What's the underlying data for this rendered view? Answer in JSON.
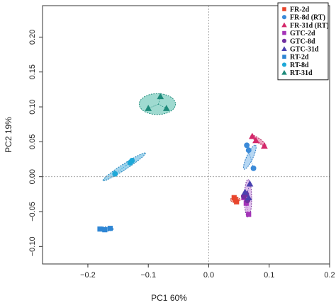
{
  "chart_data": {
    "type": "scatter",
    "xlabel": "PC1 60%",
    "ylabel": "PC2 19%",
    "xlim": [
      -0.275,
      0.2
    ],
    "ylim": [
      -0.125,
      0.245
    ],
    "x_ticks": [
      -0.2,
      -0.1,
      0.0,
      0.1,
      0.2
    ],
    "x_tick_labels": [
      "−0.2",
      "−0.1",
      "0.0",
      "0.1",
      "0.2"
    ],
    "y_ticks": [
      -0.1,
      -0.05,
      0.0,
      0.05,
      0.1,
      0.15,
      0.2
    ],
    "y_tick_labels": [
      "−0.10",
      "−0.05",
      "0.00",
      "0.05",
      "0.10",
      "0.15",
      "0.20"
    ],
    "reference_lines": {
      "x": 0,
      "y": 0
    },
    "grid": false,
    "legend_position": "top-right",
    "series": [
      {
        "name": "FR-2d",
        "color": "#e8452c",
        "marker": "square",
        "points": [
          [
            0.042,
            -0.03
          ],
          [
            0.046,
            -0.036
          ],
          [
            0.044,
            -0.033
          ]
        ]
      },
      {
        "name": "FR-8d (RT)",
        "color": "#3b8ad8",
        "marker": "circle",
        "points": [
          [
            0.063,
            0.045
          ],
          [
            0.066,
            0.038
          ],
          [
            0.074,
            0.012
          ]
        ]
      },
      {
        "name": "FR-31d (RT)",
        "color": "#d4286a",
        "marker": "triangle",
        "points": [
          [
            0.072,
            0.058
          ],
          [
            0.078,
            0.052
          ],
          [
            0.092,
            0.044
          ]
        ]
      },
      {
        "name": "GTC-2d",
        "color": "#a434b8",
        "marker": "square",
        "points": [
          [
            0.062,
            -0.038
          ],
          [
            0.066,
            -0.054
          ],
          [
            0.058,
            -0.03
          ]
        ]
      },
      {
        "name": "GTC-8d",
        "color": "#7030a0",
        "marker": "circle",
        "points": [
          [
            0.058,
            -0.028
          ],
          [
            0.062,
            -0.025
          ],
          [
            0.064,
            -0.034
          ]
        ]
      },
      {
        "name": "GTC-31d",
        "color": "#4a42b0",
        "marker": "triangle",
        "points": [
          [
            0.068,
            -0.01
          ],
          [
            0.06,
            -0.022
          ],
          [
            0.066,
            -0.03
          ]
        ]
      },
      {
        "name": "RT-2d",
        "color": "#2e86d4",
        "marker": "square",
        "points": [
          [
            -0.18,
            -0.075
          ],
          [
            -0.172,
            -0.076
          ],
          [
            -0.163,
            -0.074
          ]
        ]
      },
      {
        "name": "RT-8d",
        "color": "#1ea8d8",
        "marker": "circle",
        "points": [
          [
            -0.155,
            0.004
          ],
          [
            -0.13,
            0.02
          ],
          [
            -0.127,
            0.023
          ]
        ]
      },
      {
        "name": "RT-31d",
        "color": "#1d8a7a",
        "marker": "triangle",
        "points": [
          [
            -0.1,
            0.098
          ],
          [
            -0.08,
            0.115
          ],
          [
            -0.07,
            0.098
          ]
        ]
      }
    ],
    "ellipses": [
      {
        "group": "RT-31d",
        "cx": -0.085,
        "cy": 0.104,
        "rx": 0.03,
        "ry": 0.015,
        "angle_deg": 0,
        "fill": "#5fc2b0",
        "stroke": "#1d8a7a",
        "opacity": 0.6
      },
      {
        "group": "RT-8d",
        "cx": -0.14,
        "cy": 0.014,
        "rx": 0.042,
        "ry": 0.004,
        "angle_deg": 33,
        "fill": "#5fb6e0",
        "stroke": "#1a7fb8",
        "opacity": 0.6
      },
      {
        "group": "RT-2d",
        "cx": -0.171,
        "cy": -0.075,
        "rx": 0.013,
        "ry": 0.003,
        "angle_deg": 0,
        "fill": "#5fa6e0",
        "stroke": "#1a6fb8",
        "opacity": 0.6
      },
      {
        "group": "FR-8d (RT)",
        "cx": 0.068,
        "cy": 0.028,
        "rx": 0.022,
        "ry": 0.0045,
        "angle_deg": 65,
        "fill": "#7ab6ea",
        "stroke": "#2a78c0",
        "opacity": 0.55
      },
      {
        "group": "FR-31d (RT)",
        "cx": 0.082,
        "cy": 0.052,
        "rx": 0.015,
        "ry": 0.003,
        "angle_deg": -35,
        "fill": "#e25a8e",
        "stroke": "#b0205a",
        "opacity": 0.55
      },
      {
        "group": "GTC",
        "cx": 0.065,
        "cy": -0.031,
        "rx": 0.006,
        "ry": 0.027,
        "angle_deg": 0,
        "fill": "#c287da",
        "stroke": "#7a3a9a",
        "opacity": 0.55
      },
      {
        "group": "FR-2d",
        "cx": 0.044,
        "cy": -0.033,
        "rx": 0.008,
        "ry": 0.004,
        "angle_deg": 0,
        "fill": "#f08070",
        "stroke": "#c03020",
        "opacity": 0.55
      }
    ]
  }
}
